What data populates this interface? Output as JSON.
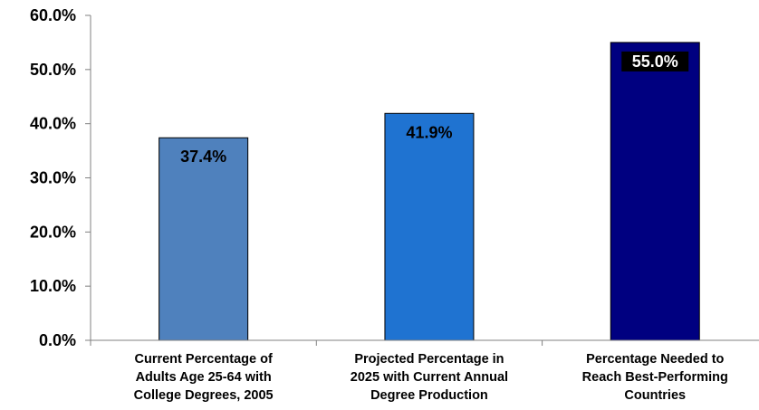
{
  "chart_data": {
    "type": "bar",
    "title": "",
    "xlabel": "",
    "ylabel": "",
    "ylim": [
      0,
      60
    ],
    "grid": false,
    "legend": "none",
    "yticks": [
      {
        "value": 0,
        "label": "0.0%"
      },
      {
        "value": 10,
        "label": "10.0%"
      },
      {
        "value": 20,
        "label": "20.0%"
      },
      {
        "value": 30,
        "label": "30.0%"
      },
      {
        "value": 40,
        "label": "40.0%"
      },
      {
        "value": 50,
        "label": "50.0%"
      },
      {
        "value": 60,
        "label": "60.0%"
      }
    ],
    "categories": [
      [
        "Current Percentage of",
        "Adults Age 25-64 with",
        "College Degrees, 2005"
      ],
      [
        "Projected Percentage in",
        "2025 with Current Annual",
        "Degree Production"
      ],
      [
        "Percentage Needed to",
        "Reach Best-Performing",
        "Countries"
      ]
    ],
    "values": [
      37.4,
      41.9,
      55.0
    ],
    "data_labels": [
      "37.4%",
      "41.9%",
      "55.0%"
    ],
    "bar_colors": [
      "#4f81bd",
      "#1f73d1",
      "#000080"
    ],
    "data_label_colors": [
      "#000000",
      "#000000",
      "#ffffff"
    ],
    "data_label_backgrounds": [
      "",
      "",
      "#000000"
    ],
    "axis_color": "#808080"
  }
}
